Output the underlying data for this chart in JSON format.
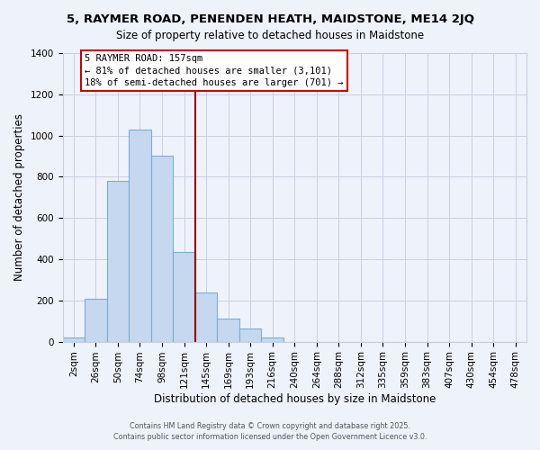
{
  "title": "5, RAYMER ROAD, PENENDEN HEATH, MAIDSTONE, ME14 2JQ",
  "subtitle": "Size of property relative to detached houses in Maidstone",
  "xlabel": "Distribution of detached houses by size in Maidstone",
  "ylabel": "Number of detached properties",
  "bar_labels": [
    "2sqm",
    "26sqm",
    "50sqm",
    "74sqm",
    "98sqm",
    "121sqm",
    "145sqm",
    "169sqm",
    "193sqm",
    "216sqm",
    "240sqm",
    "264sqm",
    "288sqm",
    "312sqm",
    "335sqm",
    "359sqm",
    "383sqm",
    "407sqm",
    "430sqm",
    "454sqm",
    "478sqm"
  ],
  "bar_values": [
    20,
    210,
    780,
    1030,
    900,
    435,
    240,
    110,
    65,
    20,
    0,
    0,
    0,
    0,
    0,
    0,
    0,
    0,
    0,
    0,
    0
  ],
  "bar_color": "#c5d8f0",
  "bar_edge_color": "#7badd4",
  "background_color": "#eef2fb",
  "grid_color": "#c8d0e0",
  "vline_color": "#990000",
  "vline_x_idx": 6,
  "annotation_title": "5 RAYMER ROAD: 157sqm",
  "annotation_line1": "← 81% of detached houses are smaller (3,101)",
  "annotation_line2": "18% of semi-detached houses are larger (701) →",
  "annotation_box_facecolor": "#ffffff",
  "annotation_box_edgecolor": "#cc0000",
  "footer1": "Contains HM Land Registry data © Crown copyright and database right 2025.",
  "footer2": "Contains public sector information licensed under the Open Government Licence v3.0.",
  "ylim": [
    0,
    1400
  ],
  "yticks": [
    0,
    200,
    400,
    600,
    800,
    1000,
    1200,
    1400
  ],
  "title_fontsize": 9.5,
  "subtitle_fontsize": 8.5,
  "xlabel_fontsize": 8.5,
  "ylabel_fontsize": 8.5,
  "tick_fontsize": 7.5,
  "annotation_fontsize": 7.5,
  "footer_fontsize": 5.8
}
